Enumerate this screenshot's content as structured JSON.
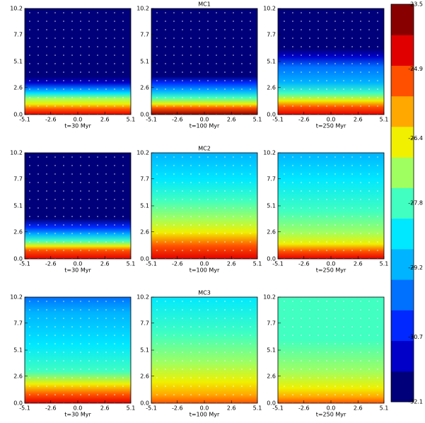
{
  "chart_data": {
    "type": "heatmap-grid",
    "rows": [
      {
        "title": "MC1",
        "panels": [
          {
            "xlabel": "t=30 Myr"
          },
          {
            "xlabel": "t=100 Myr"
          },
          {
            "xlabel": "t=250 Myr"
          }
        ]
      },
      {
        "title": "MC2",
        "panels": [
          {
            "xlabel": "t=30 Myr"
          },
          {
            "xlabel": "t=100 Myr"
          },
          {
            "xlabel": "t=250 Myr"
          }
        ]
      },
      {
        "title": "MC3",
        "panels": [
          {
            "xlabel": "t=30 Myr"
          },
          {
            "xlabel": "t=100 Myr"
          },
          {
            "xlabel": "t=250 Myr"
          }
        ]
      }
    ],
    "xlim": [
      -5.1,
      5.1
    ],
    "xticks": [
      -5.1,
      -2.6,
      {
        "value": 0,
        "label": "0.0"
      },
      2.6,
      5.1
    ],
    "ylim": [
      0,
      10.2
    ],
    "yticks": [
      {
        "value": 0,
        "label": "0.0"
      },
      2.6,
      5.1,
      7.7,
      10.2
    ],
    "colorbar": {
      "ylim": [
        -32.1,
        -23.5
      ],
      "yticks": [
        -32.1,
        -30.7,
        -29.2,
        -27.8,
        -26.4,
        -24.9,
        -23.5
      ],
      "colors": [
        "#00007a",
        "#0000c8",
        "#0028ff",
        "#0070ff",
        "#00b4ff",
        "#00e8ff",
        "#40ffc0",
        "#a0ff60",
        "#f0f000",
        "#ffa800",
        "#ff5000",
        "#e00000",
        "#880000"
      ]
    }
  }
}
